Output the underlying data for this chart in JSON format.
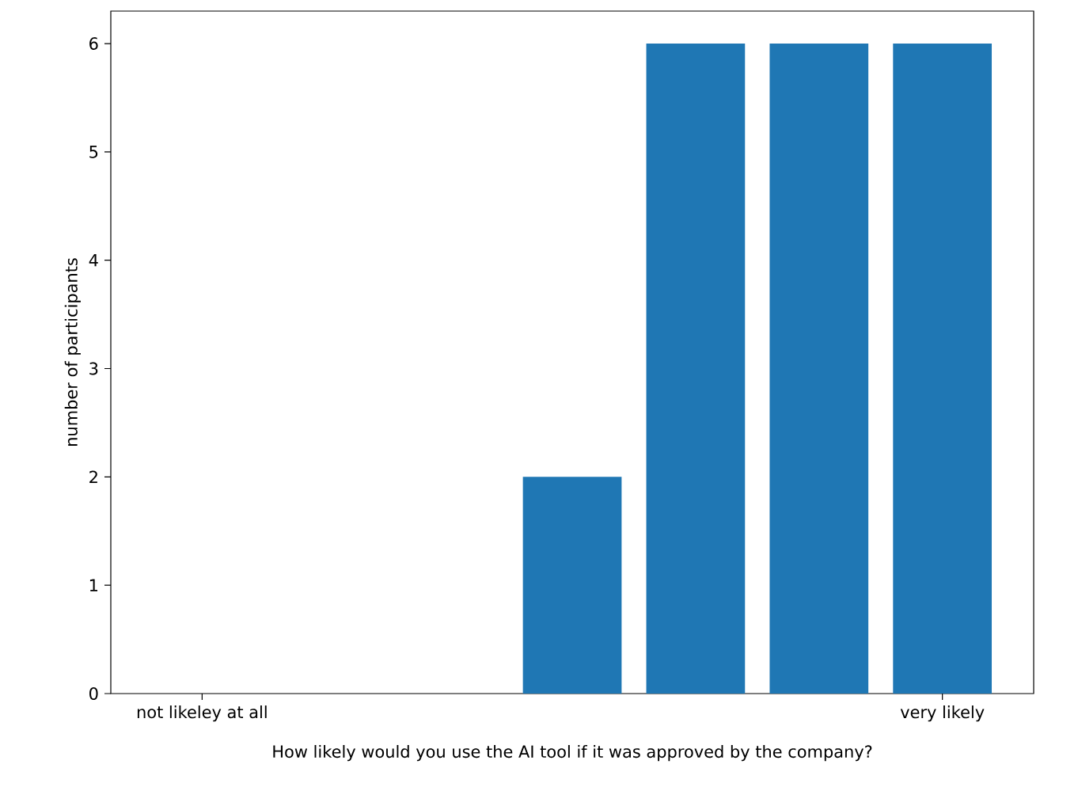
{
  "chart_data": {
    "type": "bar",
    "xlabel": "How likely would you use the AI tool if it was approved by the company?",
    "ylabel": "number of participants",
    "categories": [
      "not likeley at all",
      null,
      null,
      null,
      null,
      null,
      "very likely"
    ],
    "values": [
      0,
      0,
      0,
      2,
      6,
      6,
      6
    ],
    "color": "#1f77b4",
    "ylim": [
      0,
      6.3
    ],
    "yticks": [
      0,
      1,
      2,
      3,
      4,
      5,
      6
    ]
  }
}
